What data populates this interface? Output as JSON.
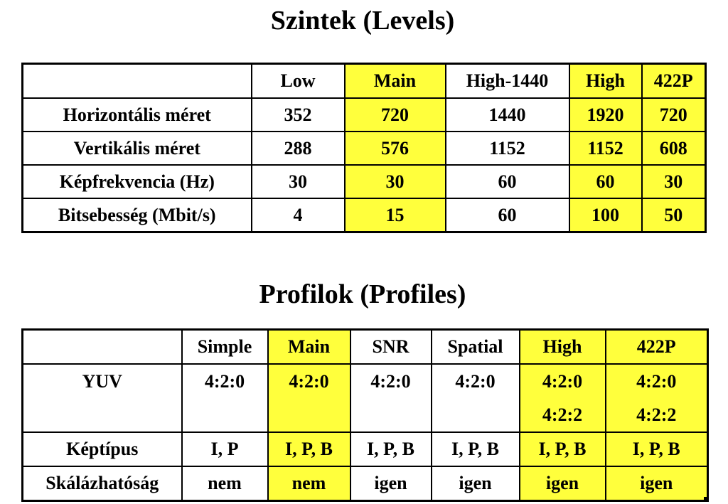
{
  "levels": {
    "title": "Szintek (Levels)",
    "columns": [
      "",
      "Low",
      "Main",
      "High-1440",
      "High",
      "422P"
    ],
    "highlighted_columns": [
      "Main",
      "High",
      "422P"
    ],
    "rows": [
      {
        "label": "Horizontális méret",
        "values": [
          "352",
          "720",
          "1440",
          "1920",
          "720"
        ]
      },
      {
        "label": "Vertikális méret",
        "values": [
          "288",
          "576",
          "1152",
          "1152",
          "608"
        ]
      },
      {
        "label": "Képfrekvencia (Hz)",
        "values": [
          "30",
          "30",
          "60",
          "60",
          "30"
        ]
      },
      {
        "label": "Bitsebesség (Mbit/s)",
        "values": [
          "4",
          "15",
          "60",
          "100",
          "50"
        ]
      }
    ]
  },
  "profiles": {
    "title": "Profilok (Profiles)",
    "columns": [
      "",
      "Simple",
      "Main",
      "SNR",
      "Spatial",
      "High",
      "422P"
    ],
    "highlighted_columns": [
      "Main",
      "High",
      "422P"
    ],
    "rows": [
      {
        "label": "YUV",
        "values": [
          [
            "4:2:0"
          ],
          [
            "4:2:0"
          ],
          [
            "4:2:0"
          ],
          [
            "4:2:0"
          ],
          [
            "4:2:0",
            "4:2:2"
          ],
          [
            "4:2:0",
            "4:2:2"
          ]
        ]
      },
      {
        "label": "Képtípus",
        "values": [
          "I, P",
          "I, P, B",
          "I, P, B",
          "I, P, B",
          "I, P, B",
          "I, P, B"
        ]
      },
      {
        "label": "Skálázhatóság",
        "values": [
          "nem",
          "nem",
          "igen",
          "igen",
          "igen",
          "igen"
        ]
      }
    ]
  },
  "colors": {
    "highlight": "#ffff3c",
    "text": "#000000",
    "background": "#ffffff"
  }
}
